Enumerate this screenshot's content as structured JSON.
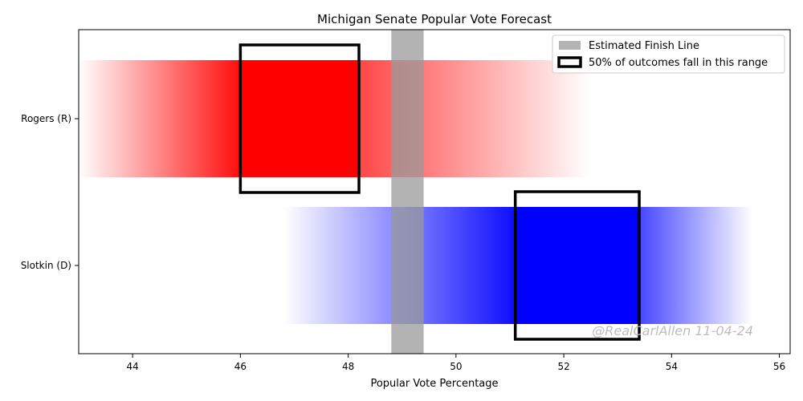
{
  "chart_data": {
    "type": "bar",
    "title": "Michigan Senate Popular Vote Forecast",
    "xlabel": "Popular Vote Percentage",
    "ylabel": "",
    "xlim": [
      43,
      56.2
    ],
    "xticks": [
      44,
      46,
      48,
      50,
      52,
      54,
      56
    ],
    "categories": [
      "Rogers (R)",
      "Slotkin (D)"
    ],
    "series": [
      {
        "candidate": "Rogers (R)",
        "color": "#ff0000",
        "distribution_range": [
          43,
          52.5
        ],
        "solid_range": [
          46,
          48.2
        ],
        "interquartile_range": [
          46,
          48.2
        ]
      },
      {
        "candidate": "Slotkin (D)",
        "color": "#0000ff",
        "distribution_range": [
          46.8,
          55.5
        ],
        "solid_range": [
          51.1,
          53.4
        ],
        "interquartile_range": [
          51.1,
          53.4
        ]
      }
    ],
    "finish_line": {
      "range": [
        48.8,
        49.4
      ],
      "color": "#999999"
    },
    "legend": {
      "placement": "top-right",
      "entries": [
        {
          "label": "Estimated Finish Line",
          "style": "gray-patch"
        },
        {
          "label": "50% of outcomes fall in this range",
          "style": "black-outline"
        }
      ]
    },
    "watermark": "@RealCarlAllen 11-04-24",
    "grid": false
  }
}
